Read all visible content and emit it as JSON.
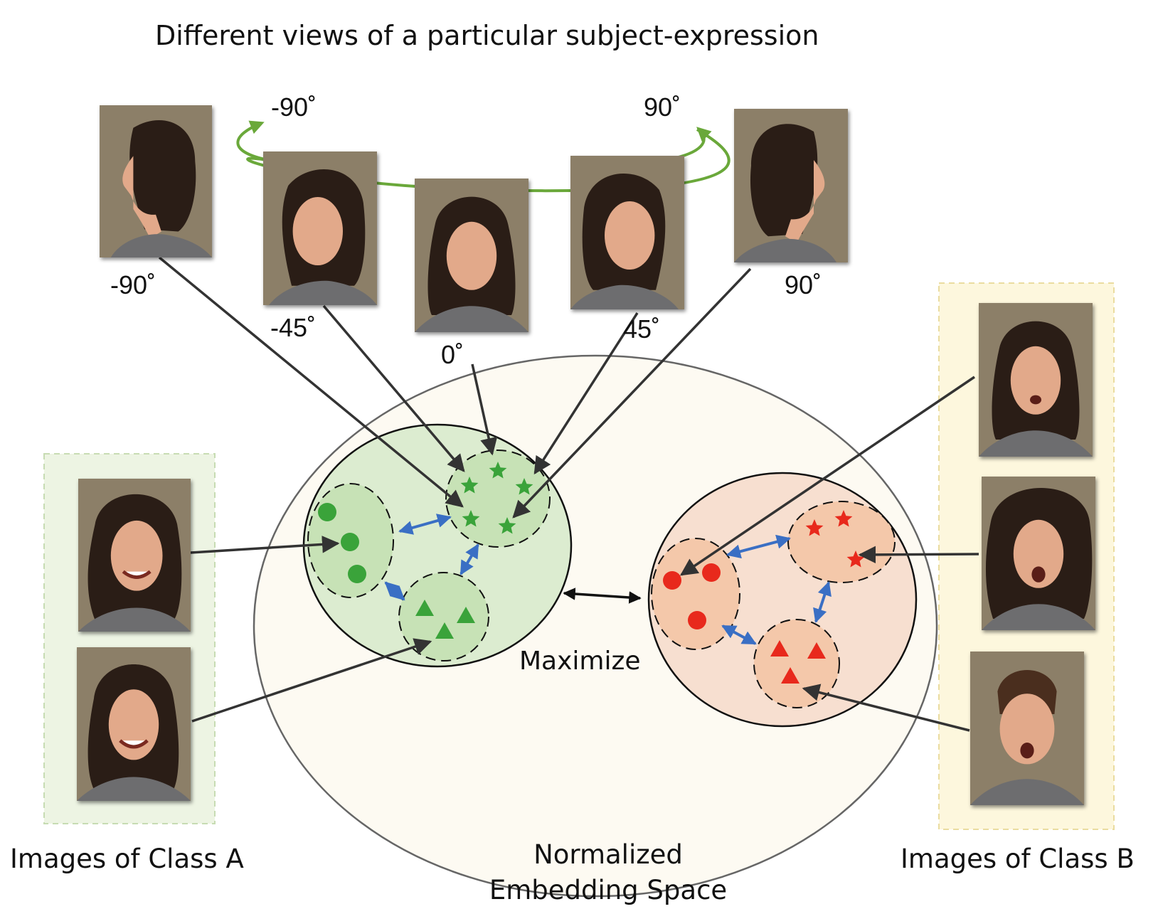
{
  "title": "Different views of a particular subject-expression",
  "rotation_labels": {
    "left": "-90˚",
    "right": "90˚"
  },
  "view_labels": [
    "-90˚",
    "-45˚",
    "0˚",
    "45˚",
    "90˚"
  ],
  "maximize_label": "Maximize",
  "captions": {
    "class_a": "Images of Class A",
    "embedding_line1": "Normalized",
    "embedding_line2": "Embedding Space",
    "class_b": "Images of Class B"
  },
  "colors": {
    "green_marker": "#3aa33a",
    "red_marker": "#e8291c",
    "blue_arrow": "#3a6fc4",
    "rotation_arc": "#6aa83a",
    "class_a_panel": "#edf4e3",
    "class_b_panel": "#fdf7dd",
    "cluster_a": "#dcecd0",
    "cluster_b": "#f7dfd0",
    "embedding_space": "#fdfaf2",
    "photo_background": "#8c7f68"
  }
}
